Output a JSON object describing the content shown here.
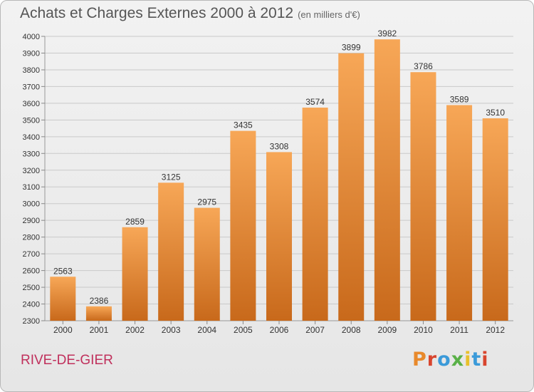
{
  "header": {
    "title": "Achats et Charges Externes 2000 à 2012",
    "unit": "(en milliers d'€)"
  },
  "footer": {
    "place": "RIVE-DE-GIER",
    "brand": "Proxiti",
    "brand_colors": [
      "#e8892b",
      "#d8452e",
      "#3b9ad9",
      "#59b047",
      "#e8c02b",
      "#3b9ad9",
      "#d8452e"
    ]
  },
  "colors": {
    "bar_top": "#f7a757",
    "bar_bottom": "#c8691b",
    "grid": "#c9c9c9",
    "axis_text": "#333333"
  },
  "chart_data": {
    "type": "bar",
    "title": "Achats et Charges Externes 2000 à 2012",
    "subtitle": "(en milliers d'€)",
    "xlabel": "",
    "ylabel": "",
    "categories": [
      "2000",
      "2001",
      "2002",
      "2003",
      "2004",
      "2005",
      "2006",
      "2007",
      "2008",
      "2009",
      "2010",
      "2011",
      "2012"
    ],
    "values": [
      2563,
      2386,
      2859,
      3125,
      2975,
      3435,
      3308,
      3574,
      3899,
      3982,
      3786,
      3589,
      3510
    ],
    "ylim": [
      2300,
      4000
    ],
    "yticks": [
      2300,
      2400,
      2500,
      2600,
      2700,
      2800,
      2900,
      3000,
      3100,
      3200,
      3300,
      3400,
      3500,
      3600,
      3700,
      3800,
      3900,
      4000
    ],
    "grid": true,
    "data_labels": true
  }
}
